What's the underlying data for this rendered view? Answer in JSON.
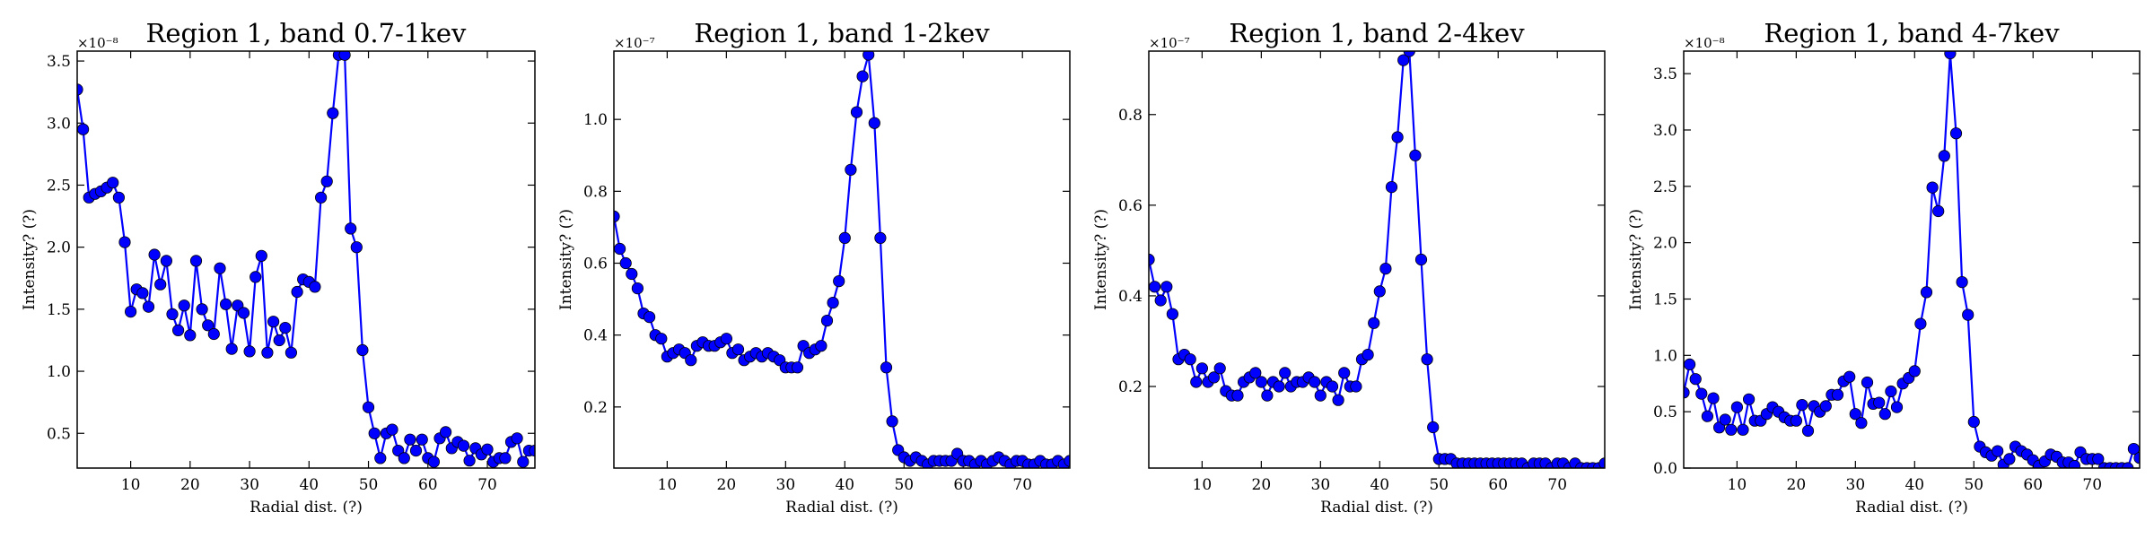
{
  "colors": {
    "series": "#0000ff",
    "axes": "#000000",
    "background": "#ffffff"
  },
  "chart_data": [
    {
      "type": "line",
      "title": "Region 1, band 0.7-1kev",
      "xlabel": "Radial dist. (?)",
      "ylabel": "Intensity? (?)",
      "y_offset_label": "×10⁻⁸",
      "xlim": [
        1,
        78
      ],
      "ylim": [
        0.22,
        3.58
      ],
      "xticks": [
        10,
        20,
        30,
        40,
        50,
        60,
        70
      ],
      "yticks": [
        0.5,
        1.0,
        1.5,
        2.0,
        2.5,
        3.0,
        3.5
      ],
      "ytick_labels": [
        "0.5",
        "1.0",
        "1.5",
        "2.0",
        "2.5",
        "3.0",
        "3.5"
      ],
      "grid": false,
      "series": [
        {
          "x": [
            1,
            2,
            3,
            4,
            5,
            6,
            7,
            8,
            9,
            10,
            11,
            12,
            13,
            14,
            15,
            16,
            17,
            18,
            19,
            20,
            21,
            22,
            23,
            24,
            25,
            26,
            27,
            28,
            29,
            30,
            31,
            32,
            33,
            34,
            35,
            36,
            37,
            38,
            39,
            40,
            41,
            42,
            43,
            44,
            45,
            46,
            47,
            48,
            49,
            50,
            51,
            52,
            53,
            54,
            55,
            56,
            57,
            58,
            59,
            60,
            61,
            62,
            63,
            64,
            65,
            66,
            67,
            68,
            69,
            70,
            71,
            72,
            73,
            74,
            75,
            76,
            77,
            78
          ],
          "values": [
            3.27,
            2.95,
            2.4,
            2.43,
            2.45,
            2.48,
            2.52,
            2.4,
            2.04,
            1.48,
            1.66,
            1.63,
            1.52,
            1.94,
            1.7,
            1.89,
            1.46,
            1.33,
            1.53,
            1.29,
            1.89,
            1.5,
            1.37,
            1.3,
            1.83,
            1.54,
            1.18,
            1.53,
            1.47,
            1.16,
            1.76,
            1.93,
            1.15,
            1.4,
            1.25,
            1.35,
            1.15,
            1.64,
            1.74,
            1.72,
            1.68,
            2.4,
            2.53,
            3.08,
            3.55,
            3.55,
            2.15,
            2.0,
            1.17,
            0.71,
            0.5,
            0.3,
            0.5,
            0.53,
            0.36,
            0.3,
            0.45,
            0.36,
            0.45,
            0.3,
            0.27,
            0.46,
            0.51,
            0.38,
            0.43,
            0.4,
            0.28,
            0.38,
            0.33,
            0.37,
            0.27,
            0.3,
            0.3,
            0.43,
            0.46,
            0.27,
            0.36,
            0.36
          ]
        }
      ]
    },
    {
      "type": "line",
      "title": "Region 1, band 1-2kev",
      "xlabel": "Radial dist. (?)",
      "ylabel": "Intensity? (?)",
      "y_offset_label": "×10⁻⁷",
      "xlim": [
        1,
        78
      ],
      "ylim": [
        0.03,
        1.19
      ],
      "xticks": [
        10,
        20,
        30,
        40,
        50,
        60,
        70
      ],
      "yticks": [
        0.2,
        0.4,
        0.6,
        0.8,
        1.0
      ],
      "ytick_labels": [
        "0.2",
        "0.4",
        "0.6",
        "0.8",
        "1.0"
      ],
      "grid": false,
      "series": [
        {
          "x": [
            1,
            2,
            3,
            4,
            5,
            6,
            7,
            8,
            9,
            10,
            11,
            12,
            13,
            14,
            15,
            16,
            17,
            18,
            19,
            20,
            21,
            22,
            23,
            24,
            25,
            26,
            27,
            28,
            29,
            30,
            31,
            32,
            33,
            34,
            35,
            36,
            37,
            38,
            39,
            40,
            41,
            42,
            43,
            44,
            45,
            46,
            47,
            48,
            49,
            50,
            51,
            52,
            53,
            54,
            55,
            56,
            57,
            58,
            59,
            60,
            61,
            62,
            63,
            64,
            65,
            66,
            67,
            68,
            69,
            70,
            71,
            72,
            73,
            74,
            75,
            76,
            77,
            78
          ],
          "values": [
            0.73,
            0.64,
            0.6,
            0.57,
            0.53,
            0.46,
            0.45,
            0.4,
            0.39,
            0.34,
            0.35,
            0.36,
            0.35,
            0.33,
            0.37,
            0.38,
            0.37,
            0.37,
            0.38,
            0.39,
            0.35,
            0.36,
            0.33,
            0.34,
            0.35,
            0.34,
            0.35,
            0.34,
            0.33,
            0.31,
            0.31,
            0.31,
            0.37,
            0.35,
            0.36,
            0.37,
            0.44,
            0.49,
            0.55,
            0.67,
            0.86,
            1.02,
            1.12,
            1.18,
            0.99,
            0.67,
            0.31,
            0.16,
            0.08,
            0.06,
            0.05,
            0.06,
            0.05,
            0.04,
            0.05,
            0.05,
            0.05,
            0.05,
            0.07,
            0.05,
            0.05,
            0.04,
            0.05,
            0.04,
            0.05,
            0.06,
            0.05,
            0.04,
            0.05,
            0.05,
            0.04,
            0.04,
            0.05,
            0.04,
            0.04,
            0.05,
            0.04,
            0.05
          ]
        }
      ]
    },
    {
      "type": "line",
      "title": "Region 1, band 2-4kev",
      "xlabel": "Radial dist. (?)",
      "ylabel": "Intensity? (?)",
      "y_offset_label": "×10⁻⁷",
      "xlim": [
        1,
        78
      ],
      "ylim": [
        0.02,
        0.94
      ],
      "xticks": [
        10,
        20,
        30,
        40,
        50,
        60,
        70
      ],
      "yticks": [
        0.2,
        0.4,
        0.6,
        0.8
      ],
      "ytick_labels": [
        "0.2",
        "0.4",
        "0.6",
        "0.8"
      ],
      "grid": false,
      "series": [
        {
          "x": [
            1,
            2,
            3,
            4,
            5,
            6,
            7,
            8,
            9,
            10,
            11,
            12,
            13,
            14,
            15,
            16,
            17,
            18,
            19,
            20,
            21,
            22,
            23,
            24,
            25,
            26,
            27,
            28,
            29,
            30,
            31,
            32,
            33,
            34,
            35,
            36,
            37,
            38,
            39,
            40,
            41,
            42,
            43,
            44,
            45,
            46,
            47,
            48,
            49,
            50,
            51,
            52,
            53,
            54,
            55,
            56,
            57,
            58,
            59,
            60,
            61,
            62,
            63,
            64,
            65,
            66,
            67,
            68,
            69,
            70,
            71,
            72,
            73,
            74,
            75,
            76,
            77,
            78
          ],
          "values": [
            0.48,
            0.42,
            0.39,
            0.42,
            0.36,
            0.26,
            0.27,
            0.26,
            0.21,
            0.24,
            0.21,
            0.22,
            0.24,
            0.19,
            0.18,
            0.18,
            0.21,
            0.22,
            0.23,
            0.21,
            0.18,
            0.21,
            0.2,
            0.23,
            0.2,
            0.21,
            0.21,
            0.22,
            0.21,
            0.18,
            0.21,
            0.2,
            0.17,
            0.23,
            0.2,
            0.2,
            0.26,
            0.27,
            0.34,
            0.41,
            0.46,
            0.64,
            0.75,
            0.92,
            0.94,
            0.71,
            0.48,
            0.26,
            0.11,
            0.04,
            0.04,
            0.04,
            0.03,
            0.03,
            0.03,
            0.03,
            0.03,
            0.03,
            0.03,
            0.03,
            0.03,
            0.03,
            0.03,
            0.03,
            0.02,
            0.03,
            0.03,
            0.03,
            0.02,
            0.03,
            0.03,
            0.02,
            0.03,
            0.02,
            0.02,
            0.02,
            0.02,
            0.03
          ]
        }
      ]
    },
    {
      "type": "line",
      "title": "Region 1, band 4-7kev",
      "xlabel": "Radial dist. (?)",
      "ylabel": "Intensity? (?)",
      "y_offset_label": "×10⁻⁸",
      "xlim": [
        1,
        78
      ],
      "ylim": [
        0.0,
        3.7
      ],
      "xticks": [
        10,
        20,
        30,
        40,
        50,
        60,
        70
      ],
      "yticks": [
        0.0,
        0.5,
        1.0,
        1.5,
        2.0,
        2.5,
        3.0,
        3.5
      ],
      "ytick_labels": [
        "0.0",
        "0.5",
        "1.0",
        "1.5",
        "2.0",
        "2.5",
        "3.0",
        "3.5"
      ],
      "grid": false,
      "series": [
        {
          "x": [
            1,
            2,
            3,
            4,
            5,
            6,
            7,
            8,
            9,
            10,
            11,
            12,
            13,
            14,
            15,
            16,
            17,
            18,
            19,
            20,
            21,
            22,
            23,
            24,
            25,
            26,
            27,
            28,
            29,
            30,
            31,
            32,
            33,
            34,
            35,
            36,
            37,
            38,
            39,
            40,
            41,
            42,
            43,
            44,
            45,
            46,
            47,
            48,
            49,
            50,
            51,
            52,
            53,
            54,
            55,
            56,
            57,
            58,
            59,
            60,
            61,
            62,
            63,
            64,
            65,
            66,
            67,
            68,
            69,
            70,
            71,
            72,
            73,
            74,
            75,
            76,
            77,
            78
          ],
          "values": [
            0.67,
            0.92,
            0.79,
            0.66,
            0.46,
            0.62,
            0.36,
            0.43,
            0.34,
            0.54,
            0.34,
            0.61,
            0.42,
            0.42,
            0.48,
            0.54,
            0.5,
            0.45,
            0.42,
            0.42,
            0.56,
            0.33,
            0.55,
            0.5,
            0.55,
            0.65,
            0.65,
            0.77,
            0.81,
            0.48,
            0.4,
            0.76,
            0.57,
            0.58,
            0.48,
            0.68,
            0.54,
            0.75,
            0.8,
            0.86,
            1.28,
            1.56,
            2.49,
            2.28,
            2.77,
            3.68,
            2.97,
            1.65,
            1.36,
            0.41,
            0.19,
            0.14,
            0.11,
            0.15,
            0.03,
            0.08,
            0.19,
            0.15,
            0.12,
            0.07,
            0.02,
            0.06,
            0.12,
            0.1,
            0.05,
            0.05,
            0.02,
            0.14,
            0.08,
            0.08,
            0.08,
            0.0,
            0.0,
            0.0,
            0.0,
            0.0,
            0.17,
            0.09
          ]
        }
      ]
    }
  ]
}
